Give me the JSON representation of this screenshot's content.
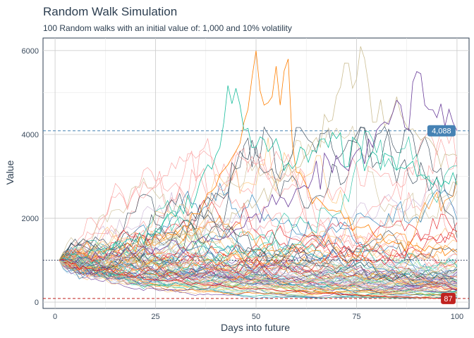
{
  "chart_data": {
    "type": "line",
    "title": "Random Walk Simulation",
    "subtitle": "100 Random walks with an initial value of: 1,000 and 10% volatility",
    "xlabel": "Days into future",
    "ylabel": "Value",
    "xlim": [
      -3,
      103
    ],
    "ylim": [
      -150,
      6300
    ],
    "x_ticks": [
      0,
      25,
      50,
      75,
      100
    ],
    "x_tick_labels": [
      "0",
      "25",
      "50",
      "75",
      "100"
    ],
    "y_ticks": [
      0,
      2000,
      4000,
      6000
    ],
    "y_tick_labels": [
      "0",
      "2000",
      "4000",
      "6000"
    ],
    "grid": true,
    "legend": "none",
    "n_walks": 100,
    "start_day": 1,
    "end_day": 100,
    "initial_value": 1000,
    "volatility": 0.1,
    "reference_lines": [
      {
        "name": "max-final",
        "value": 4088,
        "label": "4,088",
        "color": "#4682b4",
        "style": "dashed"
      },
      {
        "name": "initial",
        "value": 1000,
        "label": "",
        "color": "#1c2b4a",
        "style": "dotted"
      },
      {
        "name": "min-final",
        "value": 87,
        "label": "87",
        "color": "#c0221f",
        "style": "dashed"
      }
    ],
    "series_colors": [
      "#2c3e50",
      "#e31a1c",
      "#18bc9c",
      "#ccbe93",
      "#a6cee3",
      "#1f78b4",
      "#b2df8a",
      "#fb9a99",
      "#fdbf6f",
      "#ff7f00",
      "#cab2d6",
      "#6a3d9a"
    ],
    "highlight_series": [
      {
        "name": "peak-50",
        "color": "#ff7f00",
        "days": [
          1,
          30,
          38,
          45,
          48,
          50,
          52,
          54,
          56,
          58,
          60,
          65,
          75,
          85,
          100
        ],
        "values": [
          1000,
          1600,
          2600,
          3600,
          4600,
          6000,
          4700,
          4900,
          4700,
          5800,
          3100,
          2500,
          1800,
          1400,
          1200
        ]
      },
      {
        "name": "peak-76",
        "color": "#ccbe93",
        "days": [
          1,
          40,
          60,
          68,
          72,
          74,
          76,
          80,
          85,
          90,
          95,
          100
        ],
        "values": [
          1000,
          1800,
          3200,
          4300,
          5700,
          5100,
          6100,
          4300,
          4900,
          4000,
          3600,
          3500
        ]
      },
      {
        "name": "peak-90",
        "color": "#6a3d9a",
        "days": [
          1,
          40,
          60,
          75,
          82,
          86,
          88,
          90,
          92,
          95,
          98,
          100
        ],
        "values": [
          1000,
          1500,
          2700,
          3600,
          4300,
          4700,
          4100,
          5500,
          4700,
          4400,
          4600,
          4088
        ]
      },
      {
        "name": "peak-45",
        "color": "#18bc9c",
        "days": [
          1,
          25,
          35,
          40,
          42,
          45,
          47,
          50,
          55,
          60,
          70,
          80,
          90,
          100
        ],
        "values": [
          1000,
          1700,
          2500,
          3500,
          4300,
          5100,
          4100,
          3700,
          3900,
          3300,
          3900,
          3500,
          3000,
          2800
        ]
      },
      {
        "name": "final-min",
        "color": "#e31a1c",
        "days": [
          1,
          20,
          40,
          60,
          80,
          100
        ],
        "values": [
          1000,
          600,
          400,
          250,
          150,
          87
        ]
      }
    ]
  }
}
